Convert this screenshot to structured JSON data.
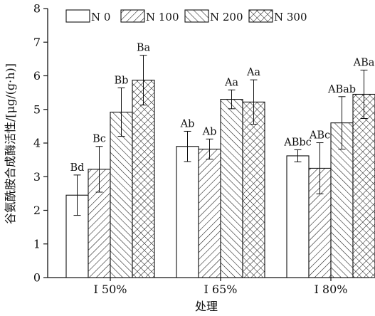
{
  "chart_data": {
    "type": "bar",
    "categories": [
      "I 50%",
      "I 65%",
      "I 80%"
    ],
    "series": [
      {
        "name": "N 0",
        "pattern": "none",
        "values": [
          2.45,
          3.9,
          3.62
        ],
        "errors": [
          0.6,
          0.45,
          0.18
        ],
        "labels": [
          "Bd",
          "Ab",
          "ABbc"
        ]
      },
      {
        "name": "N 100",
        "pattern": "diag-forward",
        "values": [
          3.22,
          3.82,
          3.25
        ],
        "errors": [
          0.68,
          0.3,
          0.76
        ],
        "labels": [
          "Bc",
          "Ab",
          "ABc"
        ]
      },
      {
        "name": "N 200",
        "pattern": "diag-back",
        "values": [
          4.92,
          5.3,
          4.6
        ],
        "errors": [
          0.72,
          0.28,
          0.78
        ],
        "labels": [
          "Bb",
          "Aa",
          "ABab"
        ]
      },
      {
        "name": "N 300",
        "pattern": "crosshatch",
        "values": [
          5.87,
          5.22,
          5.45
        ],
        "errors": [
          0.74,
          0.66,
          0.72
        ],
        "labels": [
          "Ba",
          "Aa",
          "ABa"
        ]
      }
    ],
    "xlabel": "处理",
    "ylabel": "谷氨酰胺合成酶活性/[μg/(g·h)]",
    "ylim": [
      0,
      8
    ],
    "yticks": [
      0,
      1,
      2,
      3,
      4,
      5,
      6,
      7,
      8
    ],
    "grid": false,
    "legend": "top",
    "colors": {
      "stroke": "#111111",
      "fill": "#ffffff"
    }
  }
}
